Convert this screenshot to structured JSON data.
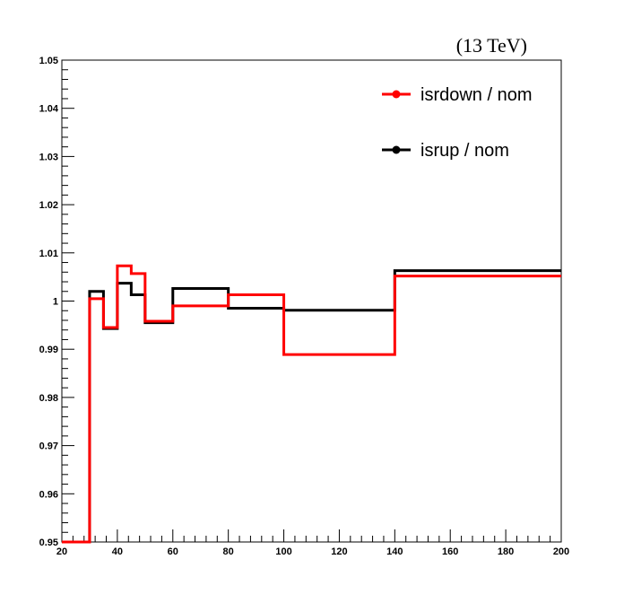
{
  "header": {
    "energy_label": "(13 TeV)"
  },
  "chart_data": {
    "type": "line",
    "style": "step",
    "xlabel": "",
    "ylabel": "",
    "xlim": [
      20,
      200
    ],
    "ylim": [
      0.95,
      1.05
    ],
    "x_ticks": [
      20,
      40,
      60,
      80,
      100,
      120,
      140,
      160,
      180,
      200
    ],
    "y_ticks": [
      0.95,
      0.96,
      0.97,
      0.98,
      0.99,
      1.0,
      1.01,
      1.02,
      1.03,
      1.04,
      1.05
    ],
    "y_tick_labels": [
      "0.95",
      "0.96",
      "0.97",
      "0.98",
      "0.99",
      "1",
      "1.01",
      "1.02",
      "1.03",
      "1.04",
      "1.05"
    ],
    "bin_edges": [
      20,
      30,
      35,
      40,
      45,
      50,
      60,
      80,
      100,
      140,
      200
    ],
    "grid": false,
    "legend_position": "top-right",
    "series": [
      {
        "name": "isrdown / nom",
        "color": "#ff0000",
        "values": [
          0.95,
          1.0005,
          0.9945,
          1.0073,
          1.0057,
          0.9958,
          0.999,
          1.0013,
          0.9889,
          1.0052
        ]
      },
      {
        "name": "isrup / nom",
        "color": "#000000",
        "values": [
          0.95,
          1.002,
          0.9943,
          1.0037,
          1.0013,
          0.9955,
          1.0026,
          0.9985,
          0.9981,
          1.0063
        ]
      }
    ]
  }
}
